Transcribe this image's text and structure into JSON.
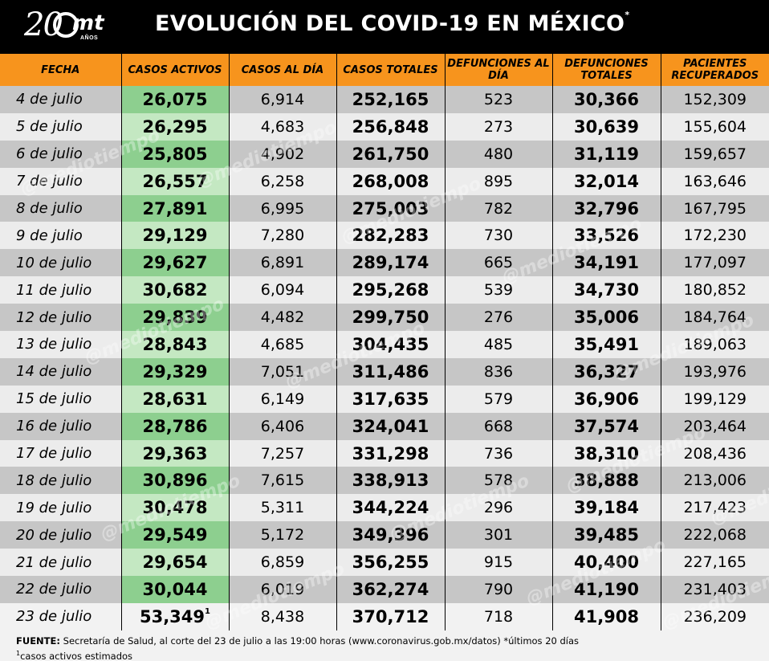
{
  "header": {
    "logo_number": "20",
    "logo_brand": "mt",
    "logo_sub": "AÑOS",
    "title": "EVOLUCIÓN DEL COVID-19 EN MÉXICO",
    "title_mark": "*"
  },
  "table": {
    "columns": [
      "FECHA",
      "CASOS ACTIVOS",
      "CASOS AL DÍA",
      "CASOS TOTALES",
      "DEFUNCIONES AL DÍA",
      "DEFUNCIONES TOTALES",
      "PACIENTES RECUPERADOS"
    ],
    "rows": [
      [
        "4 de julio",
        "26,075",
        "6,914",
        "252,165",
        "523",
        "30,366",
        "152,309"
      ],
      [
        "5 de julio",
        "26,295",
        "4,683",
        "256,848",
        "273",
        "30,639",
        "155,604"
      ],
      [
        "6 de julio",
        "25,805",
        "4,902",
        "261,750",
        "480",
        "31,119",
        "159,657"
      ],
      [
        "7 de julio",
        "26,557",
        "6,258",
        "268,008",
        "895",
        "32,014",
        "163,646"
      ],
      [
        "8 de julio",
        "27,891",
        "6,995",
        "275,003",
        "782",
        "32,796",
        "167,795"
      ],
      [
        "9 de julio",
        "29,129",
        "7,280",
        "282,283",
        "730",
        "33,526",
        "172,230"
      ],
      [
        "10 de julio",
        "29,627",
        "6,891",
        "289,174",
        "665",
        "34,191",
        "177,097"
      ],
      [
        "11 de julio",
        "30,682",
        "6,094",
        "295,268",
        "539",
        "34,730",
        "180,852"
      ],
      [
        "12 de julio",
        "29,839",
        "4,482",
        "299,750",
        "276",
        "35,006",
        "184,764"
      ],
      [
        "13 de julio",
        "28,843",
        "4,685",
        "304,435",
        "485",
        "35,491",
        "189,063"
      ],
      [
        "14 de julio",
        "29,329",
        "7,051",
        "311,486",
        "836",
        "36,327",
        "193,976"
      ],
      [
        "15 de julio",
        "28,631",
        "6,149",
        "317,635",
        "579",
        "36,906",
        "199,129"
      ],
      [
        "16 de julio",
        "28,786",
        "6,406",
        "324,041",
        "668",
        "37,574",
        "203,464"
      ],
      [
        "17 de julio",
        "29,363",
        "7,257",
        "331,298",
        "736",
        "38,310",
        "208,436"
      ],
      [
        "18 de julio",
        "30,896",
        "7,615",
        "338,913",
        "578",
        "38,888",
        "213,006"
      ],
      [
        "19 de julio",
        "30,478",
        "5,311",
        "344,224",
        "296",
        "39,184",
        "217,423"
      ],
      [
        "20 de julio",
        "29,549",
        "5,172",
        "349,396",
        "301",
        "39,485",
        "222,068"
      ],
      [
        "21 de julio",
        "29,654",
        "6,859",
        "356,255",
        "915",
        "40,400",
        "227,165"
      ],
      [
        "22 de julio",
        "30,044",
        "6,019",
        "362,274",
        "790",
        "41,190",
        "231,403"
      ],
      [
        "23 de julio",
        "53,349",
        "8,438",
        "370,712",
        "718",
        "41,908",
        "236,209"
      ]
    ],
    "last_row_mark": "1"
  },
  "watermark": "@mediotiempo",
  "footer": {
    "source_label": "FUENTE:",
    "source_text": " Secretaría de Salud, al corte del 23 de julio a las 19:00 horas (www.coronavirus.gob.mx/datos) *últimos 20 días",
    "note_mark": "1",
    "note_text": "casos activos estimados"
  },
  "colors": {
    "header_bg": "#000000",
    "column_header_bg": "#f7941d",
    "active_cases_highlight": "#8dcf8f",
    "row_dark": "#c6c6c6",
    "row_light": "#ececec"
  }
}
